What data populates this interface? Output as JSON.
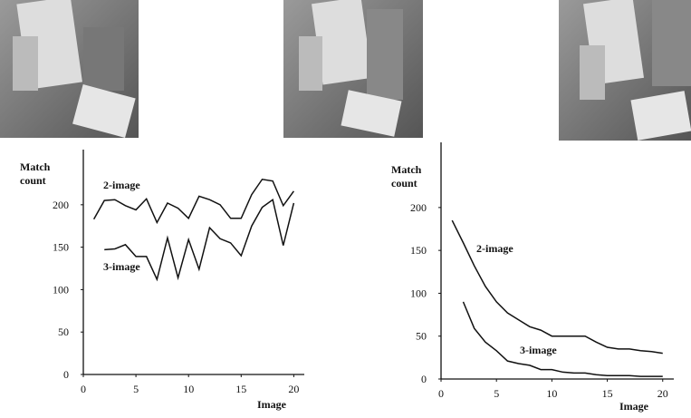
{
  "chart_data": [
    {
      "type": "line",
      "y_label": "Match count",
      "x_label": "Image",
      "x": [
        1,
        2,
        3,
        4,
        5,
        6,
        7,
        8,
        9,
        10,
        11,
        12,
        13,
        14,
        15,
        16,
        17,
        18,
        19,
        20
      ],
      "series": [
        {
          "name": "2-image",
          "color": "#111111",
          "values": [
            183,
            205,
            206,
            199,
            194,
            207,
            179,
            202,
            196,
            184,
            210,
            206,
            200,
            184,
            184,
            212,
            230,
            228,
            199,
            216
          ]
        },
        {
          "name": "3-image",
          "color": "#111111",
          "values": [
            null,
            147,
            148,
            153,
            139,
            139,
            112,
            161,
            114,
            159,
            124,
            173,
            160,
            155,
            140,
            175,
            197,
            206,
            152,
            202
          ]
        }
      ],
      "xlim": [
        0,
        21
      ],
      "ylim": [
        0,
        265
      ],
      "xticks": [
        0,
        5,
        10,
        15,
        20
      ],
      "yticks": [
        0,
        50,
        100,
        150,
        200
      ]
    },
    {
      "type": "line",
      "y_label": "Match count",
      "x_label": "Image",
      "x": [
        1,
        2,
        3,
        4,
        5,
        6,
        7,
        8,
        9,
        10,
        11,
        12,
        13,
        14,
        15,
        16,
        17,
        18,
        19,
        20
      ],
      "series": [
        {
          "name": "2-image",
          "color": "#111111",
          "values": [
            185,
            159,
            132,
            108,
            90,
            77,
            69,
            61,
            57,
            50,
            50,
            50,
            50,
            43,
            37,
            35,
            35,
            33,
            32,
            30
          ]
        },
        {
          "name": "3-image",
          "color": "#111111",
          "values": [
            null,
            90,
            59,
            43,
            33,
            21,
            18,
            16,
            11,
            11,
            8,
            7,
            7,
            5,
            4,
            4,
            4,
            3,
            3,
            3
          ]
        }
      ],
      "xlim": [
        0,
        21
      ],
      "ylim": [
        0,
        276
      ],
      "xticks": [
        0,
        5,
        10,
        15,
        20
      ],
      "yticks": [
        0,
        50,
        100,
        150,
        200
      ]
    }
  ]
}
